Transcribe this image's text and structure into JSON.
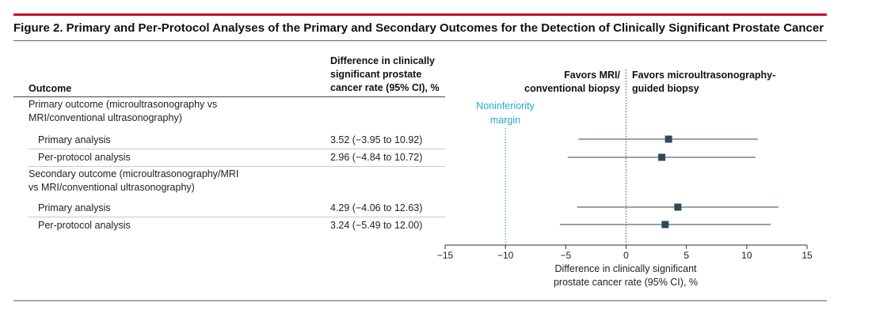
{
  "figure": {
    "title": "Figure 2. Primary and Per-Protocol Analyses of the Primary and Secondary Outcomes for the Detection of Clinically Significant Prostate Cancer"
  },
  "table": {
    "outcome_header": "Outcome",
    "diff_header": "Difference in clinically\nsignificant prostate\ncancer rate (95% CI), %",
    "groups": [
      {
        "label": "Primary outcome (microultrasonography vs\nMRI/conventional ultrasonography)",
        "rows": [
          {
            "label": "Primary analysis",
            "value_text": "3.52 (−3.95 to 10.92)"
          },
          {
            "label": "Per-protocol analysis",
            "value_text": "2.96 (−4.84 to 10.72)"
          }
        ]
      },
      {
        "label": "Secondary  outcome (microultrasonography/MRI\nvs MRI/conventional ultrasonography)",
        "rows": [
          {
            "label": "Primary analysis",
            "value_text": "4.29 (−4.06 to 12.63)"
          },
          {
            "label": "Per-protocol analysis",
            "value_text": "3.24 (−5.49 to 12.00)"
          }
        ]
      }
    ]
  },
  "chart_data": {
    "type": "forest",
    "favors_left": "Favors MRI/\nconventional biopsy",
    "favors_right": "Favors microultrasonography-\nguided biopsy",
    "noninferiority_label": "Noninferiority\nmargin",
    "noninferiority_margin": -10,
    "reference_line": 0,
    "xlabel": "Difference in clinically significant\nprostate cancer rate (95% CI), %",
    "xlim": [
      -15,
      15
    ],
    "xticks": [
      -15,
      -10,
      -5,
      0,
      5,
      10,
      15
    ],
    "xtick_labels": [
      "−15",
      "−10",
      "−5",
      "0",
      "5",
      "10",
      "15"
    ],
    "points": [
      {
        "group": "Primary outcome",
        "label": "Primary analysis",
        "estimate": 3.52,
        "lower": -3.95,
        "upper": 10.92
      },
      {
        "group": "Primary outcome",
        "label": "Per-protocol analysis",
        "estimate": 2.96,
        "lower": -4.84,
        "upper": 10.72
      },
      {
        "group": "Secondary outcome",
        "label": "Primary analysis",
        "estimate": 4.29,
        "lower": -4.06,
        "upper": 12.63
      },
      {
        "group": "Secondary outcome",
        "label": "Per-protocol analysis",
        "estimate": 3.24,
        "lower": -5.49,
        "upper": 12.0
      }
    ],
    "colors": {
      "marker": "#2e4a57",
      "margin_line": "#2aa6d6",
      "reference_line": "#555555"
    }
  }
}
